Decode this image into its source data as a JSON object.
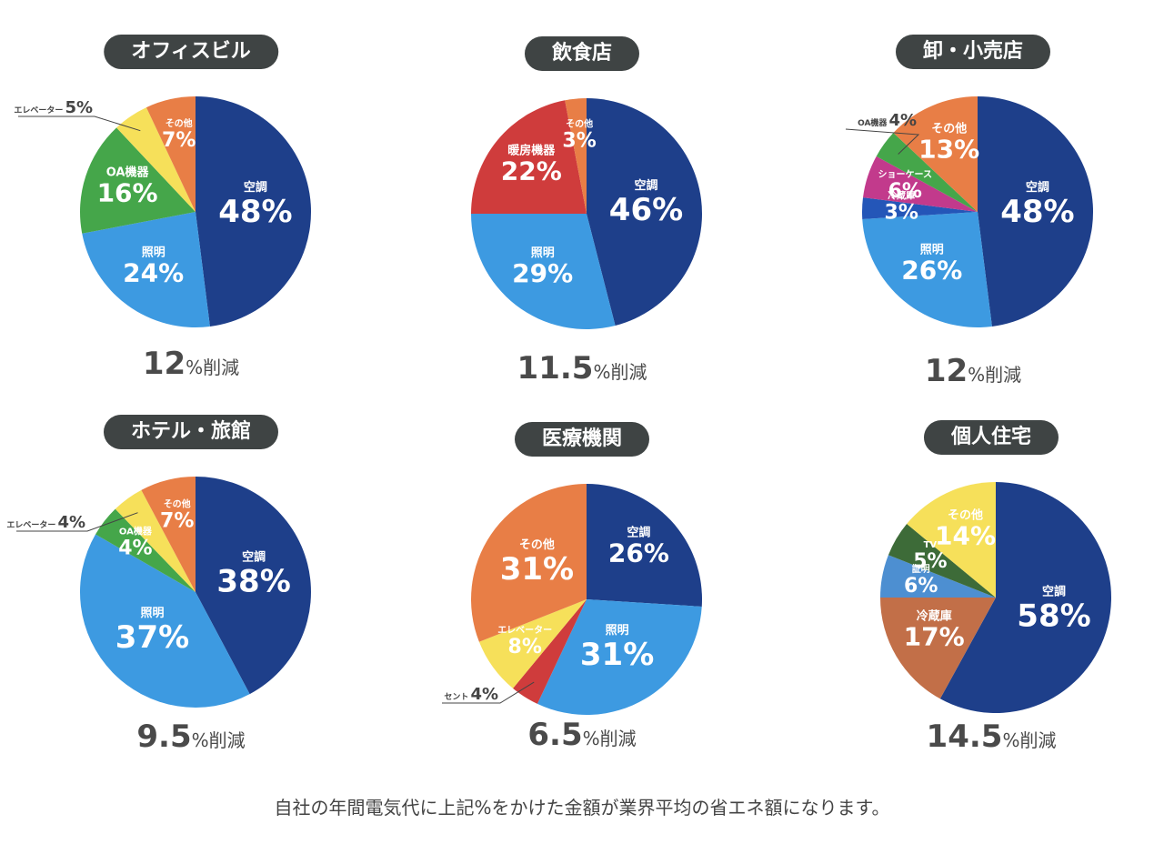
{
  "chart_data": [
    {
      "type": "pie",
      "title": "オフィスビル",
      "reduction": {
        "value": "12",
        "unit": "%削減"
      },
      "slices": [
        {
          "label": "空調",
          "value": 48,
          "value_label": "48%",
          "color": "#1e3f8a",
          "label_color": "#ffffff"
        },
        {
          "label": "照明",
          "value": 24,
          "value_label": "24%",
          "color": "#3d9ae1",
          "label_color": "#ffffff"
        },
        {
          "label": "OA機器",
          "value": 16,
          "value_label": "16%",
          "color": "#45a64a",
          "label_color": "#ffffff"
        },
        {
          "label": "エレベーター",
          "value": 5,
          "value_label": "5%",
          "color": "#f6e05a",
          "label_color": "#444444",
          "external": true
        },
        {
          "label": "その他",
          "value": 7,
          "value_label": "7%",
          "color": "#e87e46",
          "label_color": "#ffffff"
        }
      ]
    },
    {
      "type": "pie",
      "title": "飲食店",
      "reduction": {
        "value": "11.5",
        "unit": "%削減"
      },
      "slices": [
        {
          "label": "空調",
          "value": 46,
          "value_label": "46%",
          "color": "#1e3f8a",
          "label_color": "#ffffff"
        },
        {
          "label": "照明",
          "value": 29,
          "value_label": "29%",
          "color": "#3d9ae1",
          "label_color": "#ffffff"
        },
        {
          "label": "暖房機器",
          "value": 22,
          "value_label": "22%",
          "color": "#cf3c3c",
          "label_color": "#ffffff"
        },
        {
          "label": "その他",
          "value": 3,
          "value_label": "3%",
          "color": "#e87e46",
          "label_color": "#ffffff"
        }
      ]
    },
    {
      "type": "pie",
      "title": "卸・小売店",
      "reduction": {
        "value": "12",
        "unit": "%削減"
      },
      "slices": [
        {
          "label": "空調",
          "value": 48,
          "value_label": "48%",
          "color": "#1e3f8a",
          "label_color": "#ffffff"
        },
        {
          "label": "照明",
          "value": 26,
          "value_label": "26%",
          "color": "#3d9ae1",
          "label_color": "#ffffff"
        },
        {
          "label": "冷蔵庫",
          "value": 3,
          "value_label": "3%",
          "color": "#2456b8",
          "label_color": "#ffffff"
        },
        {
          "label": "ショーケース",
          "value": 6,
          "value_label": "6%",
          "color": "#c23a8c",
          "label_color": "#ffffff"
        },
        {
          "label": "OA機器",
          "value": 4,
          "value_label": "4%",
          "color": "#45a64a",
          "label_color": "#444444",
          "external": true
        },
        {
          "label": "その他",
          "value": 13,
          "value_label": "13%",
          "color": "#e87e46",
          "label_color": "#ffffff"
        }
      ]
    },
    {
      "type": "pie",
      "title": "ホテル・旅館",
      "reduction": {
        "value": "9.5",
        "unit": "%削減"
      },
      "slices": [
        {
          "label": "空調",
          "value": 38,
          "value_label": "38%",
          "color": "#1e3f8a",
          "label_color": "#ffffff"
        },
        {
          "label": "照明",
          "value": 37,
          "value_label": "37%",
          "color": "#3d9ae1",
          "label_color": "#ffffff"
        },
        {
          "label": "OA機器",
          "value": 4,
          "value_label": "4%",
          "color": "#45a64a",
          "label_color": "#ffffff"
        },
        {
          "label": "エレベーター",
          "value": 4,
          "value_label": "4%",
          "color": "#f6e05a",
          "label_color": "#444444",
          "external": true
        },
        {
          "label": "その他",
          "value": 7,
          "value_label": "7%",
          "color": "#e87e46",
          "label_color": "#ffffff"
        }
      ]
    },
    {
      "type": "pie",
      "title": "医療機関",
      "reduction": {
        "value": "6.5",
        "unit": "%削減"
      },
      "slices": [
        {
          "label": "空調",
          "value": 26,
          "value_label": "26%",
          "color": "#1e3f8a",
          "label_color": "#ffffff"
        },
        {
          "label": "照明",
          "value": 31,
          "value_label": "31%",
          "color": "#3d9ae1",
          "label_color": "#ffffff"
        },
        {
          "label": "セント",
          "value": 4,
          "value_label": "4%",
          "color": "#cf3c3c",
          "label_color": "#444444",
          "external": true
        },
        {
          "label": "エレベーター",
          "value": 8,
          "value_label": "8%",
          "color": "#f6e05a",
          "label_color": "#ffffff"
        },
        {
          "label": "その他",
          "value": 31,
          "value_label": "31%",
          "color": "#e87e46",
          "label_color": "#ffffff"
        }
      ]
    },
    {
      "type": "pie",
      "title": "個人住宅",
      "reduction": {
        "value": "14.5",
        "unit": "%削減"
      },
      "slices": [
        {
          "label": "空調",
          "value": 58,
          "value_label": "58%",
          "color": "#1e3f8a",
          "label_color": "#ffffff"
        },
        {
          "label": "冷蔵庫",
          "value": 17,
          "value_label": "17%",
          "color": "#c26f48",
          "label_color": "#ffffff"
        },
        {
          "label": "証明",
          "value": 6,
          "value_label": "6%",
          "color": "#4d8fd1",
          "label_color": "#ffffff"
        },
        {
          "label": "TV",
          "value": 5,
          "value_label": "5%",
          "color": "#3d6b38",
          "label_color": "#ffffff"
        },
        {
          "label": "その他",
          "value": 14,
          "value_label": "14%",
          "color": "#f6e05a",
          "label_color": "#ffffff"
        }
      ]
    }
  ],
  "footer": {
    "text": "自社の年間電気代に上記%をかけた金額が業界平均の省エネ額になります。"
  }
}
